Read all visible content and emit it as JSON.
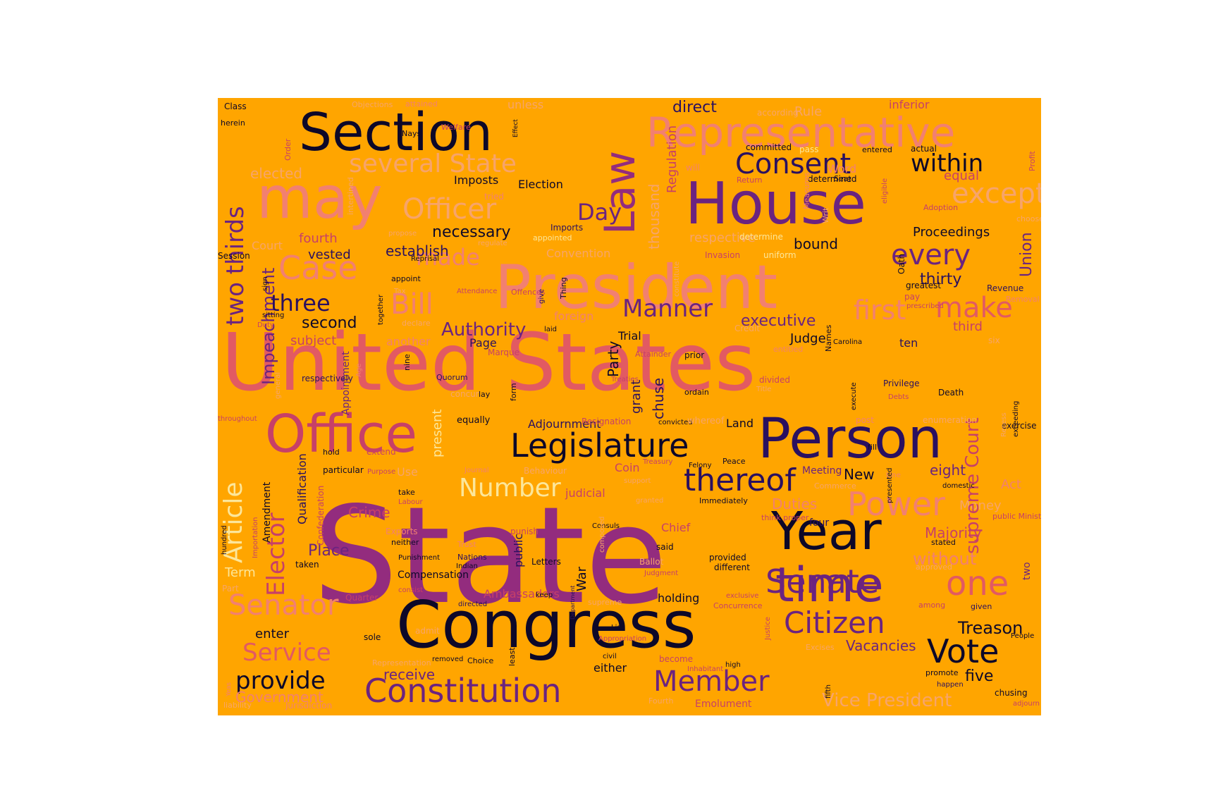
{
  "background_color": "#FFA500",
  "palette": {
    "black": "#0d0829",
    "navy": "#2a1060",
    "purple": "#6b2380",
    "magenta": "#932c7e",
    "rose": "#c74068",
    "coral": "#e25a62",
    "salmon": "#f28070",
    "peach": "#f7a46a",
    "cream": "#fce69a"
  },
  "words": [
    {
      "text": "State",
      "color": "magenta"
    },
    {
      "text": "United States",
      "color": "coral"
    },
    {
      "text": "Congress",
      "color": "black"
    },
    {
      "text": "Person",
      "color": "navy"
    },
    {
      "text": "President",
      "color": "salmon"
    },
    {
      "text": "House",
      "color": "purple"
    },
    {
      "text": "time",
      "color": "purple"
    },
    {
      "text": "Year",
      "color": "black"
    },
    {
      "text": "Office",
      "color": "rose"
    },
    {
      "text": "may",
      "color": "salmon"
    },
    {
      "text": "Law",
      "color": "magenta"
    },
    {
      "text": "Section",
      "color": "black"
    },
    {
      "text": "Representative",
      "color": "salmon"
    },
    {
      "text": "Constitution",
      "color": "purple"
    },
    {
      "text": "Legislature",
      "color": "black"
    },
    {
      "text": "Senate",
      "color": "purple"
    },
    {
      "text": "Citizen",
      "color": "purple"
    },
    {
      "text": "Vote",
      "color": "black"
    },
    {
      "text": "Power",
      "color": "salmon"
    },
    {
      "text": "one",
      "color": "coral"
    },
    {
      "text": "thereof",
      "color": "navy"
    },
    {
      "text": "Member",
      "color": "purple"
    },
    {
      "text": "Case",
      "color": "salmon"
    },
    {
      "text": "Bill",
      "color": "salmon"
    },
    {
      "text": "Senator",
      "color": "salmon"
    },
    {
      "text": "Service",
      "color": "coral"
    },
    {
      "text": "Officer",
      "color": "peach"
    },
    {
      "text": "Consent",
      "color": "navy"
    },
    {
      "text": "several State",
      "color": "peach"
    },
    {
      "text": "every",
      "color": "purple"
    },
    {
      "text": "make",
      "color": "coral"
    },
    {
      "text": "except",
      "color": "peach"
    },
    {
      "text": "within",
      "color": "black"
    },
    {
      "text": "Manner",
      "color": "purple"
    },
    {
      "text": "first",
      "color": "salmon"
    },
    {
      "text": "Number",
      "color": "cream"
    },
    {
      "text": "two thirds",
      "color": "purple"
    },
    {
      "text": "Article",
      "color": "cream"
    },
    {
      "text": "Elector",
      "color": "rose"
    },
    {
      "text": "Impeachment",
      "color": "purple"
    },
    {
      "text": "provide",
      "color": "black"
    },
    {
      "text": "made",
      "color": "salmon"
    },
    {
      "text": "three",
      "color": "navy"
    },
    {
      "text": "Day",
      "color": "purple"
    },
    {
      "text": "Authority",
      "color": "purple"
    },
    {
      "text": "Treason",
      "color": "black"
    },
    {
      "text": "Vice President",
      "color": "peach"
    },
    {
      "text": "Duties",
      "color": "salmon"
    },
    {
      "text": "Place",
      "color": "purple"
    },
    {
      "text": "executive",
      "color": "purple"
    },
    {
      "text": "Majority",
      "color": "rose"
    },
    {
      "text": "without",
      "color": "salmon"
    },
    {
      "text": "Vacancies",
      "color": "purple"
    },
    {
      "text": "Government",
      "color": "salmon"
    },
    {
      "text": "receive",
      "color": "purple"
    },
    {
      "text": "five",
      "color": "black"
    },
    {
      "text": "second",
      "color": "black"
    },
    {
      "text": "Crime",
      "color": "rose"
    },
    {
      "text": "enter",
      "color": "black"
    },
    {
      "text": "Term",
      "color": "cream"
    },
    {
      "text": "necessary",
      "color": "black"
    },
    {
      "text": "establish",
      "color": "navy"
    },
    {
      "text": "Judge",
      "color": "black"
    },
    {
      "text": "thirty",
      "color": "navy"
    },
    {
      "text": "subject",
      "color": "rose"
    },
    {
      "text": "Proceedings",
      "color": "black"
    },
    {
      "text": "fourth",
      "color": "rose"
    },
    {
      "text": "Convention",
      "color": "peach"
    },
    {
      "text": "elected",
      "color": "peach"
    },
    {
      "text": "vested",
      "color": "navy"
    },
    {
      "text": "Court",
      "color": "peach"
    },
    {
      "text": "Union",
      "color": "purple"
    },
    {
      "text": "Rule",
      "color": "peach"
    },
    {
      "text": "Election",
      "color": "black"
    },
    {
      "text": "Imposts",
      "color": "black"
    },
    {
      "text": "thousand",
      "color": "peach"
    },
    {
      "text": "Regulation",
      "color": "rose"
    },
    {
      "text": "respective",
      "color": "peach"
    },
    {
      "text": "bound",
      "color": "black"
    },
    {
      "text": "another",
      "color": "salmon"
    },
    {
      "text": "Page",
      "color": "navy"
    },
    {
      "text": "Trial",
      "color": "black"
    },
    {
      "text": "ten",
      "color": "navy"
    },
    {
      "text": "third",
      "color": "rose"
    },
    {
      "text": "foreign",
      "color": "salmon"
    },
    {
      "text": "Party",
      "color": "black"
    },
    {
      "text": "chuse",
      "color": "navy"
    },
    {
      "text": "grant",
      "color": "navy"
    },
    {
      "text": "present",
      "color": "cream"
    },
    {
      "text": "Appointment",
      "color": "purple"
    },
    {
      "text": "Adjournment",
      "color": "navy"
    },
    {
      "text": "Land",
      "color": "black"
    },
    {
      "text": "Coin",
      "color": "rose"
    },
    {
      "text": "New",
      "color": "black"
    },
    {
      "text": "eight",
      "color": "purple"
    },
    {
      "text": "Act",
      "color": "salmon"
    },
    {
      "text": "Money",
      "color": "peach"
    },
    {
      "text": "judicial",
      "color": "rose"
    },
    {
      "text": "War",
      "color": "black"
    },
    {
      "text": "supreme Court",
      "color": "rose"
    },
    {
      "text": "two",
      "color": "purple"
    },
    {
      "text": "Qualification",
      "color": "navy"
    },
    {
      "text": "Amendment",
      "color": "black"
    },
    {
      "text": "Ambassadors",
      "color": "rose"
    },
    {
      "text": "holding",
      "color": "black"
    },
    {
      "text": "either",
      "color": "black"
    },
    {
      "text": "public",
      "color": "navy"
    },
    {
      "text": "direct",
      "color": "navy"
    },
    {
      "text": "unless",
      "color": "peach"
    },
    {
      "text": "inferior",
      "color": "rose"
    },
    {
      "text": "Word",
      "color": "salmon"
    },
    {
      "text": "equal",
      "color": "rose"
    },
    {
      "text": "according",
      "color": "peach"
    },
    {
      "text": "Class",
      "color": "black"
    },
    {
      "text": "herein",
      "color": "black"
    },
    {
      "text": "Welfare",
      "color": "rose"
    },
    {
      "text": "Nays",
      "color": "black"
    },
    {
      "text": "Effect",
      "color": "black"
    },
    {
      "text": "Order",
      "color": "rose"
    },
    {
      "text": "Objections",
      "color": "peach"
    },
    {
      "text": "attained",
      "color": "salmon"
    },
    {
      "text": "pass",
      "color": "cream"
    },
    {
      "text": "entered",
      "color": "black"
    },
    {
      "text": "actual",
      "color": "black"
    },
    {
      "text": "Profit",
      "color": "rose"
    },
    {
      "text": "committed",
      "color": "black"
    },
    {
      "text": "will",
      "color": "salmon"
    },
    {
      "text": "Return",
      "color": "rose"
    },
    {
      "text": "determined",
      "color": "black"
    },
    {
      "text": "Seat",
      "color": "black"
    },
    {
      "text": "Measures",
      "color": "salmon"
    },
    {
      "text": "Writ",
      "color": "peach"
    },
    {
      "text": "eligible",
      "color": "rose"
    },
    {
      "text": "Adoption",
      "color": "rose"
    },
    {
      "text": "choose",
      "color": "peach"
    },
    {
      "text": "tried",
      "color": "salmon"
    },
    {
      "text": "intertined",
      "color": "peach"
    },
    {
      "text": "Imports",
      "color": "navy"
    },
    {
      "text": "appointed",
      "color": "cream"
    },
    {
      "text": "propose",
      "color": "peach"
    },
    {
      "text": "regulate",
      "color": "peach"
    },
    {
      "text": "Reprisal",
      "color": "black"
    },
    {
      "text": "determine",
      "color": "cream"
    },
    {
      "text": "Invasion",
      "color": "rose"
    },
    {
      "text": "uniform",
      "color": "cream"
    },
    {
      "text": "Oath",
      "color": "black"
    },
    {
      "text": "Session",
      "color": "black"
    },
    {
      "text": "appoint",
      "color": "black"
    },
    {
      "text": "Tax",
      "color": "peach"
    },
    {
      "text": "Attendance",
      "color": "rose"
    },
    {
      "text": "Offences",
      "color": "rose"
    },
    {
      "text": "Thing",
      "color": "black"
    },
    {
      "text": "give",
      "color": "navy"
    },
    {
      "text": "constitute",
      "color": "peach"
    },
    {
      "text": "greatest",
      "color": "black"
    },
    {
      "text": "pay",
      "color": "rose"
    },
    {
      "text": "prescribed",
      "color": "rose"
    },
    {
      "text": "Revenue",
      "color": "navy"
    },
    {
      "text": "Removal",
      "color": "salmon"
    },
    {
      "text": "sign",
      "color": "black"
    },
    {
      "text": "sitting",
      "color": "black"
    },
    {
      "text": "Duty",
      "color": "rose"
    },
    {
      "text": "together",
      "color": "black"
    },
    {
      "text": "declare",
      "color": "peach"
    },
    {
      "text": "laid",
      "color": "black"
    },
    {
      "text": "Marque",
      "color": "rose"
    },
    {
      "text": "Attainder",
      "color": "rose"
    },
    {
      "text": "prior",
      "color": "black"
    },
    {
      "text": "Credit",
      "color": "peach"
    },
    {
      "text": "entitled",
      "color": "salmon"
    },
    {
      "text": "Carolina",
      "color": "black"
    },
    {
      "text": "Names",
      "color": "black"
    },
    {
      "text": "six",
      "color": "peach"
    },
    {
      "text": "general",
      "color": "peach"
    },
    {
      "text": "respectively",
      "color": "navy"
    },
    {
      "text": "Age",
      "color": "salmon"
    },
    {
      "text": "nine",
      "color": "black"
    },
    {
      "text": "Quorum",
      "color": "navy"
    },
    {
      "text": "concur",
      "color": "peach"
    },
    {
      "text": "lay",
      "color": "black"
    },
    {
      "text": "form",
      "color": "black"
    },
    {
      "text": "Treaties",
      "color": "rose"
    },
    {
      "text": "ordain",
      "color": "black"
    },
    {
      "text": "divided",
      "color": "rose"
    },
    {
      "text": "Title",
      "color": "peach"
    },
    {
      "text": "execute",
      "color": "black"
    },
    {
      "text": "Privilege",
      "color": "navy"
    },
    {
      "text": "Debts",
      "color": "rose"
    },
    {
      "text": "Death",
      "color": "black"
    },
    {
      "text": "throughout",
      "color": "rose"
    },
    {
      "text": "equally",
      "color": "black"
    },
    {
      "text": "Resignation",
      "color": "rose"
    },
    {
      "text": "convicted",
      "color": "black"
    },
    {
      "text": "whereof",
      "color": "peach"
    },
    {
      "text": "post",
      "color": "salmon"
    },
    {
      "text": "enumeration",
      "color": "peach"
    },
    {
      "text": "exercise",
      "color": "black"
    },
    {
      "text": "hold",
      "color": "black"
    },
    {
      "text": "extend",
      "color": "rose"
    },
    {
      "text": "fill",
      "color": "black"
    },
    {
      "text": "Recess",
      "color": "peach"
    },
    {
      "text": "exceeding",
      "color": "black"
    },
    {
      "text": "particular",
      "color": "black"
    },
    {
      "text": "Purpose",
      "color": "rose"
    },
    {
      "text": "Use",
      "color": "peach"
    },
    {
      "text": "Journal",
      "color": "salmon"
    },
    {
      "text": "Behaviour",
      "color": "peach"
    },
    {
      "text": "Treasury",
      "color": "rose"
    },
    {
      "text": "Felony",
      "color": "black"
    },
    {
      "text": "Peace",
      "color": "black"
    },
    {
      "text": "Meeting",
      "color": "purple"
    },
    {
      "text": "Line",
      "color": "salmon"
    },
    {
      "text": "domestic",
      "color": "black"
    },
    {
      "text": "Commerce",
      "color": "peach"
    },
    {
      "text": "take",
      "color": "black"
    },
    {
      "text": "Labour",
      "color": "rose"
    },
    {
      "text": "support",
      "color": "peach"
    },
    {
      "text": "granted",
      "color": "peach"
    },
    {
      "text": "Immediately",
      "color": "black"
    },
    {
      "text": "hundred",
      "color": "black"
    },
    {
      "text": "Importation",
      "color": "rose"
    },
    {
      "text": "Confederation",
      "color": "rose"
    },
    {
      "text": "think proper",
      "color": "rose"
    },
    {
      "text": "four",
      "color": "navy"
    },
    {
      "text": "public Ministers",
      "color": "rose"
    },
    {
      "text": "Exports",
      "color": "salmon"
    },
    {
      "text": "neither",
      "color": "black"
    },
    {
      "text": "punish",
      "color": "rose"
    },
    {
      "text": "Consuls",
      "color": "black"
    },
    {
      "text": "Chief",
      "color": "rose"
    },
    {
      "text": "Trust",
      "color": "salmon"
    },
    {
      "text": "stated",
      "color": "black"
    },
    {
      "text": "taken",
      "color": "black"
    },
    {
      "text": "Punishment",
      "color": "black"
    },
    {
      "text": "Nations",
      "color": "navy"
    },
    {
      "text": "Indian",
      "color": "black"
    },
    {
      "text": "Letters",
      "color": "black"
    },
    {
      "text": "said",
      "color": "black"
    },
    {
      "text": "provided",
      "color": "black"
    },
    {
      "text": "different",
      "color": "black"
    },
    {
      "text": "Ballot",
      "color": "peach"
    },
    {
      "text": "Judgment",
      "color": "rose"
    },
    {
      "text": "approved",
      "color": "peach"
    },
    {
      "text": "Compensation",
      "color": "black"
    },
    {
      "text": "Part",
      "color": "peach"
    },
    {
      "text": "consist",
      "color": "rose"
    },
    {
      "text": "composed",
      "color": "peach"
    },
    {
      "text": "presented",
      "color": "black"
    },
    {
      "text": "Quarter",
      "color": "rose"
    },
    {
      "text": "directed",
      "color": "navy"
    },
    {
      "text": "keep",
      "color": "black"
    },
    {
      "text": "supreme",
      "color": "peach"
    },
    {
      "text": "Concurrence",
      "color": "rose"
    },
    {
      "text": "exclusive",
      "color": "rose"
    },
    {
      "text": "among",
      "color": "rose"
    },
    {
      "text": "given",
      "color": "navy"
    },
    {
      "text": "Department",
      "color": "navy"
    },
    {
      "text": "admit",
      "color": "peach"
    },
    {
      "text": "List",
      "color": "black"
    },
    {
      "text": "sole",
      "color": "black"
    },
    {
      "text": "Justice",
      "color": "rose"
    },
    {
      "text": "Appropriation",
      "color": "rose"
    },
    {
      "text": "civil",
      "color": "black"
    },
    {
      "text": "Excises",
      "color": "peach"
    },
    {
      "text": "People",
      "color": "black"
    },
    {
      "text": "Yeas",
      "color": "salmon"
    },
    {
      "text": "Representation",
      "color": "peach"
    },
    {
      "text": "removed",
      "color": "black"
    },
    {
      "text": "Choice",
      "color": "black"
    },
    {
      "text": "least",
      "color": "black"
    },
    {
      "text": "become",
      "color": "rose"
    },
    {
      "text": "Inhabitant",
      "color": "rose"
    },
    {
      "text": "high",
      "color": "black"
    },
    {
      "text": "promote",
      "color": "black"
    },
    {
      "text": "happen",
      "color": "navy"
    },
    {
      "text": "fifth",
      "color": "black"
    },
    {
      "text": "liability",
      "color": "peach"
    },
    {
      "text": "Emolument",
      "color": "rose"
    },
    {
      "text": "Jurisdiction",
      "color": "salmon"
    },
    {
      "text": "Fourth",
      "color": "peach"
    },
    {
      "text": "chusing",
      "color": "black"
    },
    {
      "text": "adjourn",
      "color": "rose"
    },
    {
      "text": "next",
      "color": "cream"
    }
  ]
}
